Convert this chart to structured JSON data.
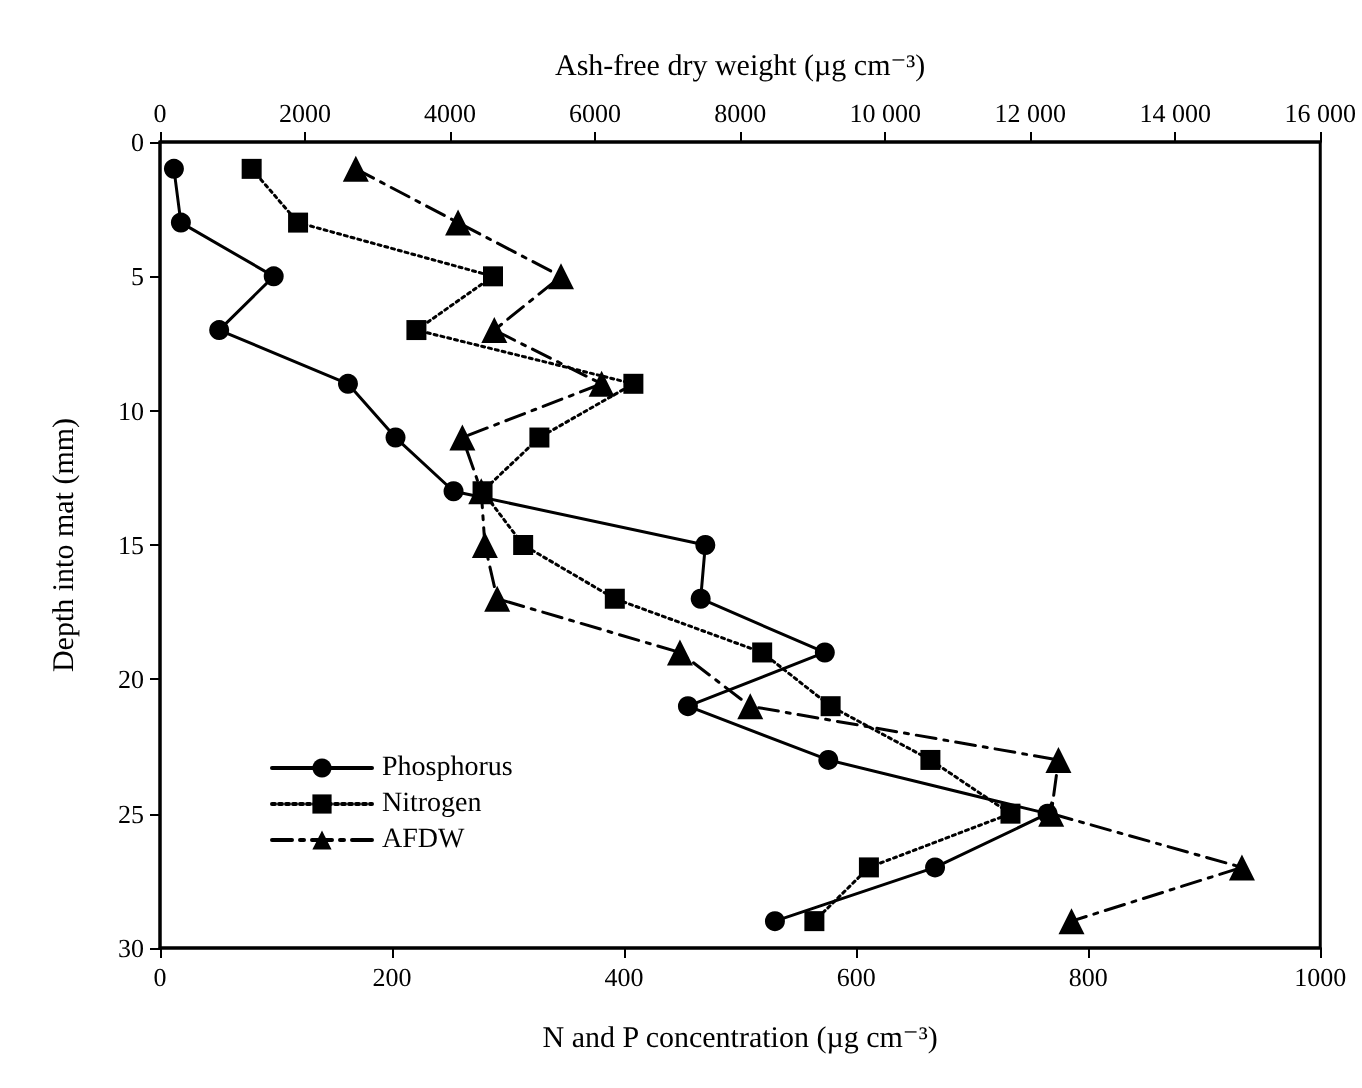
{
  "chart_data": {
    "type": "line",
    "xlabel": "N and P concentration (µg cm⁻³)",
    "x2label": "Ash-free dry weight (µg cm⁻³)",
    "ylabel": "Depth into mat (mm)",
    "xlim": [
      0,
      1000
    ],
    "xticks": [
      0,
      200,
      400,
      600,
      800,
      1000
    ],
    "x2lim": [
      0,
      16000
    ],
    "x2ticks": [
      0,
      2000,
      4000,
      6000,
      8000,
      {
        "value": 10000,
        "label": "10 000"
      },
      {
        "value": 12000,
        "label": "12 000"
      },
      {
        "value": 14000,
        "label": "14 000"
      },
      {
        "value": 16000,
        "label": "16 000"
      }
    ],
    "ylim": [
      30,
      0
    ],
    "yticks": [
      0,
      5,
      10,
      15,
      20,
      25,
      30
    ],
    "grid": false,
    "legend": "bottom left",
    "series": [
      {
        "name": "Phosphorus",
        "color": "#000000",
        "marker": "circle",
        "line_style": "solid",
        "x": [
          12,
          18,
          98,
          51,
          162,
          203,
          253,
          470,
          466,
          573,
          455,
          576,
          765,
          668,
          530
        ],
        "values": [
          1,
          3,
          5,
          7,
          9,
          11,
          13,
          15,
          17,
          19,
          21,
          23,
          25,
          27,
          29
        ]
      },
      {
        "name": "Nitrogen",
        "color": "#000000",
        "marker": "square",
        "line_style": "dotted",
        "x": [
          79,
          119,
          287,
          221,
          408,
          327,
          278,
          313,
          392,
          519,
          578,
          664,
          733,
          611,
          564
        ],
        "values": [
          1,
          3,
          5,
          7,
          9,
          11,
          13,
          15,
          17,
          19,
          21,
          23,
          25,
          27,
          29
        ]
      },
      {
        "name": "AFDW",
        "color": "#000000",
        "marker": "triangle",
        "line_style": "dashed",
        "axis": "x2",
        "x": [
          2700,
          4110,
          5530,
          4610,
          6090,
          4170,
          4430,
          4480,
          4650,
          7170,
          8140,
          12390,
          12290,
          14920,
          12570
        ],
        "values": [
          1,
          3,
          5,
          7,
          9,
          11,
          13,
          15,
          17,
          19,
          21,
          23,
          25,
          27,
          29
        ]
      }
    ]
  }
}
